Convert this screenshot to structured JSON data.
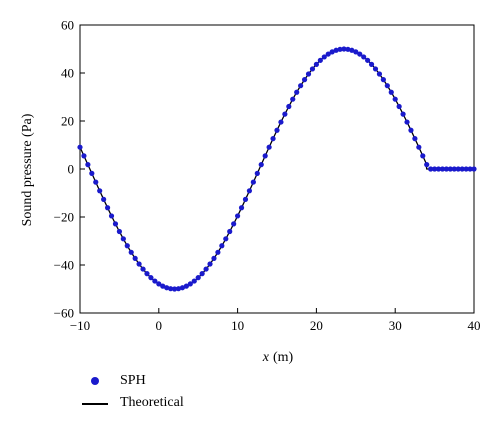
{
  "chart_data": {
    "type": "line",
    "xlabel_italic": "x",
    "xlabel_unit": "(m)",
    "ylabel": "Sound pressure (Pa)",
    "xlim": [
      -10,
      40
    ],
    "ylim": [
      -60,
      60
    ],
    "xticks": [
      -10,
      0,
      10,
      20,
      30,
      40
    ],
    "yticks": [
      -60,
      -40,
      -20,
      0,
      20,
      40,
      60
    ],
    "xtick_labels": [
      "−10",
      "0",
      "10",
      "20",
      "30",
      "40"
    ],
    "ytick_labels": [
      "−60",
      "−40",
      "−20",
      "0",
      "20",
      "40",
      "60"
    ],
    "grid": false,
    "legend_position": "bottom-left, below plot",
    "wave": {
      "amplitude": 50,
      "wavelength": 43,
      "crest_x": 23.5,
      "front_x": 34,
      "after_front_value": 0
    },
    "series": [
      {
        "name": "SPH",
        "marker": "circle",
        "color": "#1a1acc",
        "x": [
          -10,
          -9.5,
          -9,
          -8.5,
          -8,
          -7.5,
          -7,
          -6.5,
          -6,
          -5.5,
          -5,
          -4.5,
          -4,
          -3.5,
          -3,
          -2.5,
          -2,
          -1.5,
          -1,
          -0.5,
          0,
          0.5,
          1,
          1.5,
          2,
          2.5,
          3,
          3.5,
          4,
          4.5,
          5,
          5.5,
          6,
          6.5,
          7,
          7.5,
          8,
          8.5,
          9,
          9.5,
          10,
          10.5,
          11,
          11.5,
          12,
          12.5,
          13,
          13.5,
          14,
          14.5,
          15,
          15.5,
          16,
          16.5,
          17,
          17.5,
          18,
          18.5,
          19,
          19.5,
          20,
          20.5,
          21,
          21.5,
          22,
          22.5,
          23,
          23.5,
          24,
          24.5,
          25,
          25.5,
          26,
          26.5,
          27,
          27.5,
          28,
          28.5,
          29,
          29.5,
          30,
          30.5,
          31,
          31.5,
          32,
          32.5,
          33,
          33.5,
          34,
          34.5,
          35,
          35.5,
          36,
          36.5,
          37,
          37.5,
          38,
          38.5,
          39,
          39.5,
          40
        ]
      },
      {
        "name": "Theoretical",
        "marker": "line",
        "color": "#000000"
      }
    ]
  }
}
